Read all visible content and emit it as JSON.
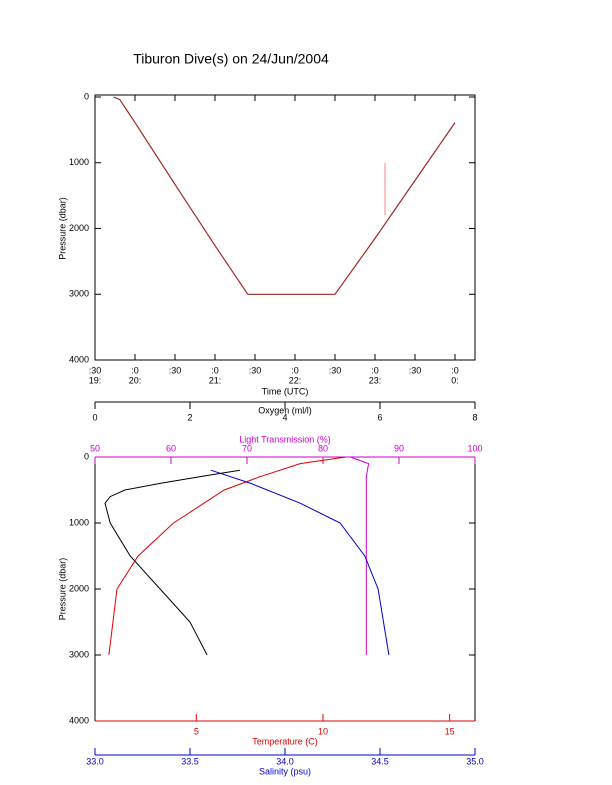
{
  "chart_data": [
    {
      "type": "line",
      "title": "Tiburon Dive(s) on 24/Jun/2004",
      "xlabel": "Time (UTC)",
      "ylabel": "Pressure (dbar)",
      "xlim": [
        19.5,
        24.25
      ],
      "xticks": [
        {
          "value": 19.5,
          "label": ":30"
        },
        {
          "value": 20,
          "label": ":0"
        },
        {
          "value": 20.5,
          "label": ":30"
        },
        {
          "value": 21,
          "label": ":0"
        },
        {
          "value": 21.5,
          "label": ":30"
        },
        {
          "value": 22,
          "label": ":0"
        },
        {
          "value": 22.5,
          "label": ":30"
        },
        {
          "value": 23,
          "label": ":0"
        },
        {
          "value": 23.5,
          "label": ":30"
        },
        {
          "value": 24,
          "label": ":0"
        }
      ],
      "xtick_hours": [
        {
          "value": 19.5,
          "label": "19:"
        },
        {
          "value": 20,
          "label": "20:"
        },
        {
          "value": 21,
          "label": "21:"
        },
        {
          "value": 22,
          "label": "22:"
        },
        {
          "value": 23,
          "label": "23:"
        },
        {
          "value": 24,
          "label": "0:"
        }
      ],
      "ylim": [
        4000,
        0
      ],
      "yticks": [
        0,
        1000,
        2000,
        3000,
        4000
      ],
      "series": [
        {
          "color": "#a02828",
          "x": [
            19.73,
            19.81,
            20.0,
            20.5,
            21.0,
            21.41,
            22.0,
            22.5,
            23.0,
            23.5,
            24.0
          ],
          "y": [
            0,
            40,
            390,
            1330,
            2260,
            3000,
            3000,
            3000,
            2150,
            1270,
            390
          ]
        },
        {
          "color": "#ff9999",
          "x": [
            23.125,
            23.125
          ],
          "y": [
            1000,
            1800
          ]
        }
      ]
    },
    {
      "type": "line",
      "ylabel": "Pressure (dbar)",
      "ylim": [
        4000,
        0
      ],
      "yticks": [
        0,
        1000,
        2000,
        3000,
        4000
      ],
      "x_axes": [
        {
          "label": "Oxygen (ml/l)",
          "color": "#000000",
          "position": "top",
          "xlim": [
            0,
            8
          ],
          "xticks": [
            0,
            2,
            4,
            6,
            8
          ],
          "x": [
            2.36,
            2.0,
            1.37,
            0.74,
            0.32,
            0.21,
            0.32,
            0.63,
            1.37,
            2.2,
            3.05
          ],
          "y": [
            3000,
            2500,
            2000,
            1500,
            1000,
            700,
            600,
            500,
            400,
            300,
            200
          ]
        },
        {
          "label": "Light Transmission (%)",
          "color": "#cc00cc",
          "position": "top",
          "xlim": [
            50,
            100
          ],
          "xticks": [
            50,
            60,
            70,
            80,
            90,
            100
          ],
          "x": [
            83.6,
            86.0,
            85.7,
            85.7
          ],
          "y": [
            0,
            100,
            300,
            3000
          ]
        },
        {
          "label": "Temperature (C)",
          "color": "#dd0000",
          "position": "bottom",
          "xlim": [
            1,
            16
          ],
          "xticks": [
            5,
            10,
            15
          ],
          "x": [
            1.55,
            1.87,
            2.7,
            4.1,
            6.1,
            7.5,
            9.1,
            10.9
          ],
          "y": [
            3000,
            2000,
            1500,
            1000,
            500,
            300,
            100,
            0
          ]
        },
        {
          "label": "Salinity (psu)",
          "color": "#0000cc",
          "position": "bottom",
          "xlim": [
            33,
            35
          ],
          "xticks": [
            {
              "value": 33,
              "label": "33.0"
            },
            {
              "value": 33.5,
              "label": "33.5"
            },
            {
              "value": 34,
              "label": "34.0"
            },
            {
              "value": 34.5,
              "label": "34.5"
            },
            {
              "value": 35,
              "label": "35.0"
            }
          ],
          "x": [
            34.547,
            34.49,
            34.42,
            34.29,
            34.08,
            33.82,
            33.61
          ],
          "y": [
            3000,
            2000,
            1500,
            1000,
            700,
            400,
            200
          ]
        }
      ]
    }
  ]
}
